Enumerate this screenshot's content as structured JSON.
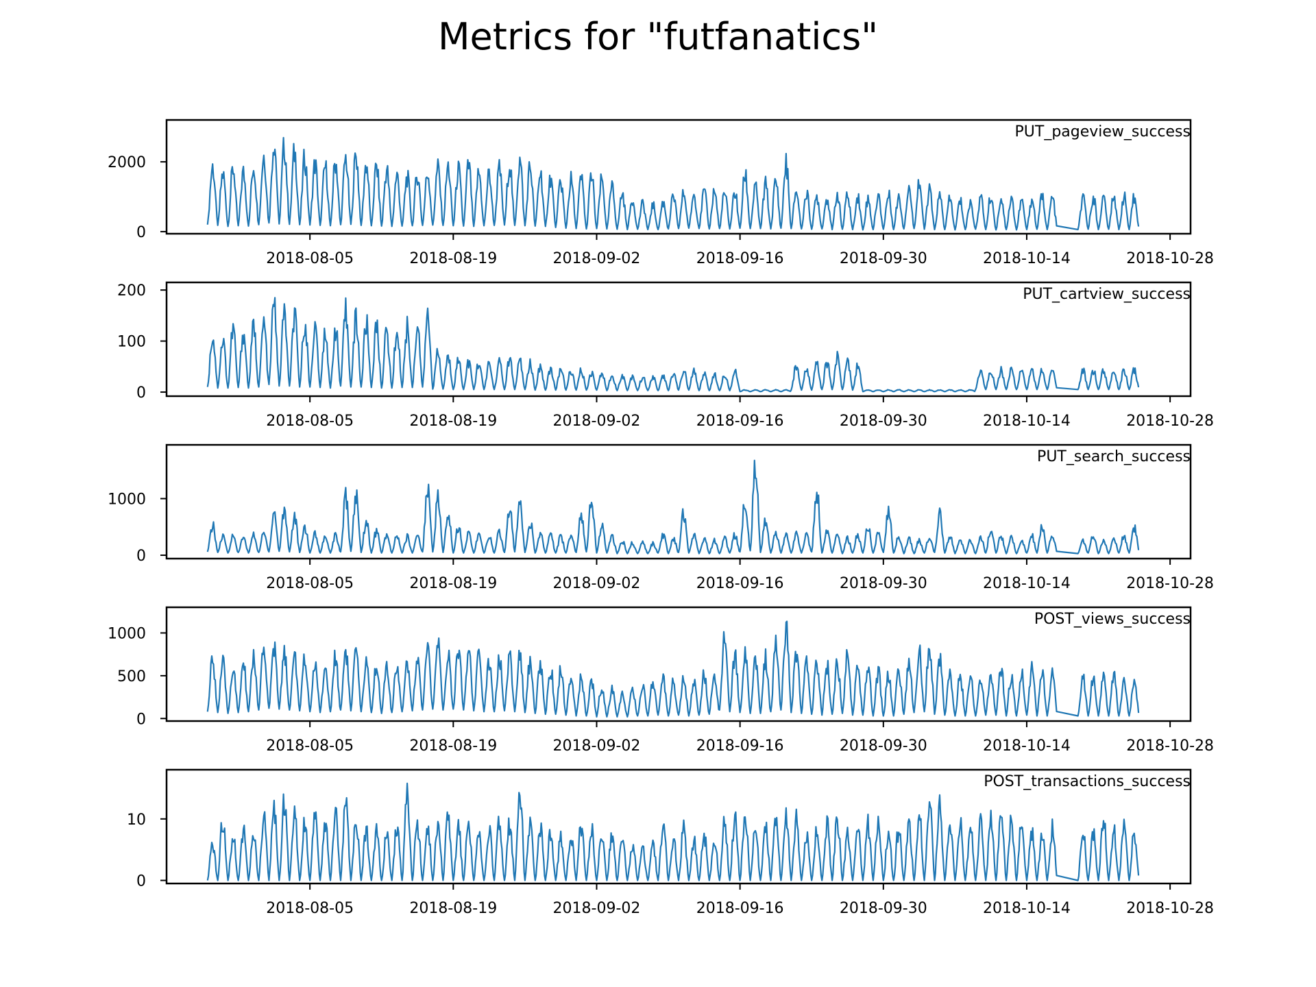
{
  "title": "Metrics for \"futfanatics\"",
  "colors": {
    "series": "#1f77b4",
    "frame": "#000000",
    "background": "#ffffff"
  },
  "chart_data": [
    {
      "type": "line",
      "label": "PUT_pageview_success",
      "x_range": [
        "2018-07-26",
        "2018-10-24"
      ],
      "xlim": [
        "2018-07-22",
        "2018-10-30"
      ],
      "x_ticks": [
        "2018-08-05",
        "2018-08-19",
        "2018-09-02",
        "2018-09-16",
        "2018-09-30",
        "2018-10-14",
        "2018-10-28"
      ],
      "ylim": [
        -60,
        3200
      ],
      "y_ticks": [
        {
          "value": 0,
          "label": "0"
        },
        {
          "value": 2000,
          "label": "2000"
        }
      ],
      "daily_peaks": [
        2200,
        1950,
        2150,
        2000,
        2250,
        2600,
        3100,
        2900,
        2700,
        2500,
        2300,
        2200,
        2400,
        2500,
        2600,
        2300,
        2200,
        2100,
        1900,
        1850,
        1950,
        2000,
        2150,
        2200,
        2100,
        2250,
        2000,
        1950,
        2100,
        2300,
        2400,
        2200,
        2000,
        1850,
        1700,
        1750,
        1800,
        1900,
        1750,
        1500,
        1300,
        1100,
        950,
        900,
        1000,
        1200,
        1300,
        1250,
        1350,
        1400,
        1300,
        1350,
        1950,
        1500,
        1600,
        1700,
        2300,
        1400,
        1300,
        1200,
        1150,
        1300,
        1250,
        1200,
        1100,
        1200,
        1250,
        1200,
        1500,
        1700,
        1400,
        1200,
        1100,
        1050,
        1000,
        1150,
        1200,
        1150,
        1100,
        1050,
        1100,
        1200,
        1150,
        1200,
        1000,
        1100,
        1200,
        1150,
        1250,
        1200,
        1150
      ],
      "daily_troughs": [
        200,
        180,
        150,
        170,
        160,
        200,
        250,
        220,
        210,
        200,
        190,
        180,
        170,
        200,
        210,
        180,
        170,
        160,
        150,
        160,
        170,
        180,
        190,
        180,
        170,
        160,
        150,
        170,
        180,
        190,
        180,
        170,
        160,
        150,
        120,
        100,
        90,
        80,
        90,
        80,
        70,
        60,
        70,
        60,
        60,
        80,
        90,
        100,
        90,
        80,
        90,
        80,
        100,
        90,
        90,
        80,
        100,
        90,
        80,
        70,
        80,
        60,
        70,
        60,
        50,
        60,
        70,
        60,
        80,
        90,
        70,
        60,
        60,
        50,
        60,
        70,
        60,
        50,
        60,
        50,
        60,
        70,
        60,
        70,
        50,
        60,
        70,
        60,
        70,
        60,
        60
      ],
      "gaps": [
        {
          "from": "2018-10-17",
          "to": "2018-10-19",
          "level": 900
        }
      ]
    },
    {
      "type": "line",
      "label": "PUT_cartview_success",
      "x_range": [
        "2018-07-26",
        "2018-10-24"
      ],
      "xlim": [
        "2018-07-22",
        "2018-10-30"
      ],
      "x_ticks": [
        "2018-08-05",
        "2018-08-19",
        "2018-09-02",
        "2018-09-16",
        "2018-09-30",
        "2018-10-14",
        "2018-10-28"
      ],
      "ylim": [
        -8,
        215
      ],
      "y_ticks": [
        {
          "value": 0,
          "label": "0"
        },
        {
          "value": 100,
          "label": "100"
        },
        {
          "value": 200,
          "label": "200"
        }
      ],
      "daily_peaks": [
        130,
        120,
        150,
        140,
        150,
        160,
        205,
        185,
        175,
        165,
        150,
        140,
        150,
        185,
        170,
        160,
        150,
        140,
        145,
        150,
        155,
        175,
        90,
        80,
        75,
        70,
        70,
        65,
        70,
        75,
        70,
        65,
        60,
        55,
        55,
        50,
        50,
        45,
        45,
        40,
        40,
        38,
        35,
        35,
        38,
        45,
        50,
        48,
        45,
        40,
        42,
        48,
        5,
        5,
        5,
        5,
        5,
        60,
        55,
        65,
        70,
        80,
        75,
        60,
        5,
        5,
        5,
        5,
        5,
        5,
        5,
        5,
        5,
        5,
        5,
        5,
        5,
        5,
        5,
        5,
        5,
        5,
        5,
        5,
        5,
        5,
        5,
        5,
        5,
        5,
        5
      ],
      "daily_troughs": [
        10,
        8,
        8,
        9,
        8,
        10,
        15,
        12,
        12,
        10,
        10,
        9,
        8,
        12,
        10,
        10,
        9,
        8,
        8,
        9,
        9,
        10,
        6,
        6,
        5,
        5,
        5,
        5,
        5,
        5,
        5,
        5,
        4,
        4,
        4,
        4,
        4,
        4,
        4,
        3,
        3,
        3,
        3,
        3,
        3,
        3,
        4,
        4,
        3,
        3,
        3,
        3,
        1,
        1,
        1,
        1,
        1,
        4,
        4,
        4,
        5,
        5,
        5,
        4,
        1,
        1,
        1,
        1,
        1,
        1,
        1,
        1,
        1,
        1,
        1,
        1,
        1,
        1,
        1,
        1,
        1,
        1,
        1,
        1,
        1,
        1,
        1,
        1,
        1,
        1,
        1
      ],
      "late_recovery": {
        "from": "2018-10-09",
        "peak": 50,
        "trough": 5
      },
      "gaps": [
        {
          "from": "2018-10-17",
          "to": "2018-10-19",
          "level": 25
        }
      ]
    },
    {
      "type": "line",
      "label": "PUT_search_success",
      "x_range": [
        "2018-07-26",
        "2018-10-24"
      ],
      "xlim": [
        "2018-07-22",
        "2018-10-30"
      ],
      "x_ticks": [
        "2018-08-05",
        "2018-08-19",
        "2018-09-02",
        "2018-09-16",
        "2018-09-30",
        "2018-10-14",
        "2018-10-28"
      ],
      "ylim": [
        -60,
        1950
      ],
      "y_ticks": [
        {
          "value": 0,
          "label": "0"
        },
        {
          "value": 1000,
          "label": "1000"
        }
      ],
      "daily_peaks": [
        620,
        380,
        400,
        350,
        420,
        450,
        900,
        950,
        800,
        600,
        450,
        400,
        420,
        1200,
        1250,
        700,
        500,
        420,
        400,
        380,
        420,
        1450,
        1200,
        850,
        600,
        450,
        420,
        400,
        480,
        1000,
        1150,
        700,
        450,
        400,
        380,
        420,
        850,
        1200,
        600,
        400,
        300,
        250,
        260,
        250,
        420,
        350,
        900,
        450,
        350,
        300,
        350,
        420,
        1150,
        1900,
        700,
        500,
        400,
        450,
        420,
        1350,
        500,
        400,
        350,
        420,
        600,
        450,
        950,
        400,
        350,
        300,
        400,
        850,
        400,
        350,
        300,
        380,
        550,
        400,
        350,
        300,
        400,
        600,
        400,
        350,
        300,
        300,
        400,
        300,
        350,
        400,
        600
      ],
      "daily_troughs": [
        60,
        50,
        40,
        50,
        40,
        50,
        60,
        70,
        60,
        50,
        40,
        40,
        40,
        60,
        70,
        50,
        40,
        40,
        40,
        40,
        40,
        60,
        60,
        50,
        40,
        40,
        40,
        40,
        40,
        50,
        60,
        50,
        40,
        40,
        40,
        40,
        50,
        60,
        40,
        40,
        30,
        30,
        30,
        30,
        40,
        30,
        50,
        40,
        30,
        30,
        30,
        40,
        60,
        80,
        50,
        40,
        40,
        40,
        40,
        60,
        40,
        40,
        30,
        40,
        40,
        40,
        50,
        40,
        30,
        30,
        40,
        50,
        40,
        30,
        30,
        30,
        40,
        40,
        30,
        30,
        40,
        40,
        40,
        30,
        30,
        30,
        40,
        30,
        30,
        40,
        40
      ],
      "gaps": [
        {
          "from": "2018-10-17",
          "to": "2018-10-19",
          "level": 150
        }
      ]
    },
    {
      "type": "line",
      "label": "POST_views_success",
      "x_range": [
        "2018-07-26",
        "2018-10-24"
      ],
      "xlim": [
        "2018-07-22",
        "2018-10-30"
      ],
      "x_ticks": [
        "2018-08-05",
        "2018-08-19",
        "2018-09-02",
        "2018-09-16",
        "2018-09-30",
        "2018-10-14",
        "2018-10-28"
      ],
      "ylim": [
        -30,
        1300
      ],
      "y_ticks": [
        {
          "value": 0,
          "label": "0"
        },
        {
          "value": 500,
          "label": "500"
        },
        {
          "value": 1000,
          "label": "1000"
        }
      ],
      "daily_peaks": [
        800,
        750,
        700,
        750,
        850,
        950,
        950,
        900,
        850,
        800,
        750,
        700,
        850,
        950,
        900,
        800,
        750,
        700,
        750,
        800,
        850,
        950,
        1000,
        900,
        1000,
        950,
        850,
        800,
        850,
        900,
        850,
        800,
        750,
        700,
        650,
        600,
        550,
        500,
        450,
        400,
        350,
        400,
        450,
        500,
        550,
        500,
        550,
        500,
        600,
        650,
        1100,
        900,
        850,
        800,
        850,
        1000,
        1250,
        950,
        850,
        800,
        750,
        800,
        850,
        700,
        700,
        650,
        600,
        650,
        800,
        950,
        1050,
        800,
        650,
        600,
        550,
        600,
        650,
        700,
        600,
        650,
        700,
        650,
        600,
        550,
        550,
        600,
        600,
        550,
        600,
        500,
        480
      ],
      "daily_troughs": [
        80,
        70,
        60,
        70,
        80,
        100,
        120,
        110,
        100,
        90,
        80,
        70,
        80,
        100,
        90,
        80,
        70,
        60,
        70,
        80,
        90,
        100,
        110,
        100,
        110,
        100,
        90,
        80,
        80,
        90,
        80,
        70,
        60,
        50,
        50,
        40,
        30,
        30,
        20,
        20,
        20,
        20,
        30,
        30,
        40,
        30,
        40,
        30,
        40,
        50,
        100,
        80,
        70,
        60,
        60,
        80,
        100,
        70,
        60,
        50,
        40,
        50,
        60,
        40,
        40,
        30,
        30,
        30,
        50,
        70,
        80,
        50,
        40,
        30,
        30,
        30,
        40,
        40,
        30,
        30,
        40,
        30,
        30,
        30,
        30,
        30,
        30,
        30,
        30,
        30,
        30
      ],
      "gaps": [
        {
          "from": "2018-10-17",
          "to": "2018-10-19",
          "level": 350
        }
      ]
    },
    {
      "type": "line",
      "label": "POST_transactions_success",
      "x_range": [
        "2018-07-26",
        "2018-10-24"
      ],
      "xlim": [
        "2018-07-22",
        "2018-10-30"
      ],
      "x_ticks": [
        "2018-08-05",
        "2018-08-19",
        "2018-09-02",
        "2018-09-16",
        "2018-09-30",
        "2018-10-14",
        "2018-10-28"
      ],
      "ylim": [
        -0.5,
        18
      ],
      "y_ticks": [
        {
          "value": 0,
          "label": "0"
        },
        {
          "value": 10,
          "label": "10"
        }
      ],
      "daily_peaks": [
        7,
        12,
        9,
        10,
        9,
        12,
        15,
        15,
        14,
        12,
        12,
        11,
        13,
        15,
        12,
        10,
        10,
        9,
        11,
        16,
        11,
        11,
        12,
        13,
        10,
        11,
        9,
        10,
        12,
        11,
        17,
        11,
        10,
        9,
        8,
        9,
        11,
        10,
        9,
        9,
        8,
        7,
        6,
        7,
        11,
        8,
        10,
        8,
        9,
        8,
        11,
        12,
        13,
        10,
        11,
        12,
        13,
        12,
        9,
        10,
        11,
        12,
        9,
        10,
        11,
        12,
        9,
        10,
        11,
        13,
        16,
        14,
        12,
        11,
        10,
        11,
        12,
        13,
        12,
        11,
        10,
        9,
        10,
        11,
        10,
        9,
        9,
        12,
        10,
        11,
        9
      ],
      "daily_troughs": [
        0,
        0,
        0,
        0,
        0,
        0,
        0,
        0,
        0,
        0,
        0,
        0,
        0,
        0,
        0,
        0,
        0,
        0,
        0,
        0,
        0,
        0,
        0,
        0,
        0,
        0,
        0,
        0,
        0,
        0,
        0,
        0,
        0,
        0,
        0,
        0,
        0,
        0,
        0,
        0,
        0,
        0,
        0,
        0,
        0,
        0,
        0,
        0,
        0,
        0,
        0,
        0,
        0,
        0,
        0,
        0,
        0,
        0,
        0,
        0,
        0,
        0,
        0,
        0,
        0,
        0,
        0,
        0,
        0,
        0,
        0,
        0,
        0,
        0,
        0,
        0,
        0,
        0,
        0,
        0,
        0,
        0,
        0,
        0,
        0,
        0,
        0,
        0,
        0,
        0,
        0
      ],
      "gaps": [
        {
          "from": "2018-10-17",
          "to": "2018-10-19",
          "level": 2
        }
      ]
    }
  ]
}
